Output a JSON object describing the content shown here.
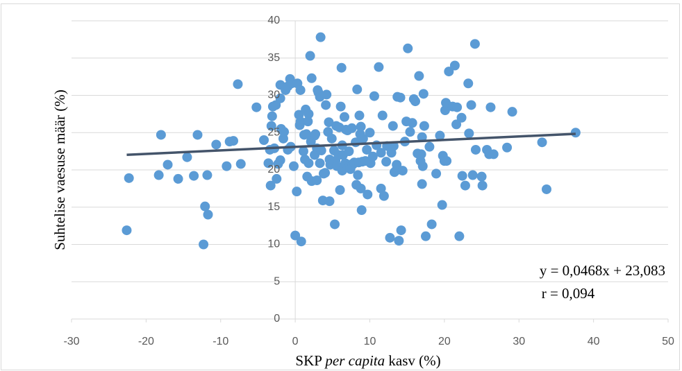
{
  "chart_data": {
    "type": "scatter",
    "x_label": [
      "SKP ",
      "per capita",
      " kasv (%)"
    ],
    "y_label": "Suhtelise vaesuse määr (%)",
    "annotations": [
      "y = 0,0468x + 23,083",
      "r = 0,094"
    ],
    "trendline": {
      "slope": 0.0468,
      "intercept": 23.083,
      "color": "#44546a"
    },
    "color": "#5b9bd5",
    "xlim": [
      -30,
      50
    ],
    "xticks": [
      -30,
      -20,
      -10,
      0,
      10,
      20,
      30,
      40,
      50
    ],
    "ylim": [
      0,
      40
    ],
    "yticks": [
      0,
      5,
      10,
      15,
      20,
      25,
      30,
      35,
      40
    ],
    "grid": true,
    "x": [
      -22.6,
      -22.3,
      -18.0,
      -17.1,
      -18.3,
      -15.7,
      -14.5,
      -13.1,
      -11.8,
      -12.1,
      -11.7,
      -12.3,
      -13.6,
      -10.6,
      -9.2,
      -8.8,
      -8.3,
      -7.7,
      -7.3,
      -5.2,
      -4.2,
      -3.6,
      -3.4,
      -3.3,
      -3.2,
      -3.1,
      -2.8,
      -3.0,
      -2.6,
      -2.5,
      -2.3,
      -2.0,
      -2.0,
      -2.0,
      -1.9,
      -1.6,
      -1.5,
      -1.3,
      -1.0,
      -1.0,
      -0.7,
      -0.5,
      -0.6,
      -0.2,
      0.0,
      0.2,
      0.3,
      0.5,
      0.6,
      0.7,
      0.7,
      0.8,
      1.1,
      1.2,
      1.3,
      1.4,
      1.6,
      1.7,
      1.5,
      1.8,
      1.8,
      2.0,
      2.1,
      2.2,
      2.2,
      2.6,
      2.6,
      2.7,
      2.9,
      2.9,
      3.0,
      3.1,
      3.3,
      3.4,
      3.3,
      3.5,
      3.7,
      3.8,
      4.0,
      4.1,
      4.2,
      4.4,
      4.5,
      4.6,
      4.6,
      4.7,
      4.9,
      5.2,
      5.3,
      5.4,
      5.5,
      5.6,
      5.8,
      5.9,
      6.0,
      6.1,
      6.2,
      6.3,
      6.3,
      6.4,
      6.6,
      6.7,
      6.8,
      7.0,
      7.2,
      7.3,
      7.4,
      7.6,
      7.7,
      7.9,
      8.1,
      8.2,
      8.3,
      8.4,
      8.5,
      8.6,
      8.7,
      8.8,
      8.8,
      8.9,
      9.0,
      9.1,
      9.4,
      9.6,
      9.7,
      10.0,
      10.1,
      10.4,
      10.6,
      10.9,
      11.2,
      11.5,
      11.5,
      11.7,
      11.9,
      12.2,
      12.3,
      12.7,
      12.9,
      13.1,
      13.2,
      13.3,
      13.5,
      13.6,
      13.7,
      13.9,
      14.1,
      14.2,
      14.4,
      14.7,
      14.9,
      15.1,
      15.4,
      15.7,
      15.9,
      16.1,
      16.4,
      16.6,
      16.8,
      16.9,
      17.0,
      17.0,
      17.1,
      17.2,
      17.3,
      17.5,
      18.0,
      18.3,
      18.9,
      19.4,
      19.7,
      19.8,
      20.0,
      20.1,
      20.2,
      20.3,
      20.6,
      21.1,
      21.4,
      21.6,
      21.7,
      22.0,
      22.3,
      22.4,
      22.8,
      23.2,
      23.3,
      23.6,
      23.8,
      24.1,
      24.2,
      25.0,
      25.1,
      25.7,
      26.0,
      26.2,
      26.6,
      28.4,
      29.1,
      33.1,
      33.7,
      37.6
    ],
    "values": [
      11.9,
      18.9,
      24.7,
      20.7,
      19.3,
      18.8,
      21.7,
      24.7,
      19.3,
      15.1,
      14.0,
      10.0,
      19.2,
      23.4,
      20.5,
      23.8,
      23.9,
      31.5,
      20.8,
      28.4,
      24.0,
      20.9,
      22.7,
      17.9,
      25.9,
      27.2,
      22.9,
      28.5,
      28.7,
      18.8,
      20.8,
      21.3,
      31.4,
      29.6,
      25.5,
      24.2,
      25.1,
      30.7,
      31.2,
      22.7,
      32.2,
      31.6,
      23.1,
      20.5,
      11.2,
      17.1,
      31.6,
      27.4,
      26.0,
      26.5,
      30.7,
      10.4,
      22.5,
      24.7,
      21.4,
      28.1,
      19.1,
      26.5,
      24.8,
      27.5,
      20.9,
      35.3,
      23.8,
      32.3,
      18.5,
      24.6,
      22.0,
      24.8,
      22.9,
      18.6,
      30.7,
      30.4,
      29.8,
      37.8,
      20.9,
      22.6,
      15.9,
      19.5,
      19.6,
      28.7,
      30.1,
      25.1,
      26.4,
      21.4,
      15.8,
      20.7,
      24.2,
      22.6,
      12.7,
      21.2,
      25.9,
      20.5,
      22.0,
      25.7,
      17.3,
      28.5,
      33.7,
      23.3,
      19.9,
      22.0,
      27.1,
      20.9,
      25.4,
      25.3,
      22.5,
      20.7,
      20.1,
      25.6,
      20.7,
      21.0,
      23.7,
      18.0,
      30.8,
      19.3,
      21.0,
      27.3,
      24.8,
      17.5,
      25.8,
      14.6,
      21.1,
      24.2,
      21.2,
      22.7,
      16.7,
      25.0,
      20.9,
      21.8,
      29.9,
      23.3,
      33.8,
      17.5,
      22.3,
      27.3,
      16.5,
      21.1,
      23.2,
      10.9,
      22.3,
      25.9,
      23.2,
      19.7,
      19.9,
      20.7,
      29.8,
      10.5,
      29.7,
      11.9,
      19.9,
      23.8,
      26.5,
      36.3,
      25.1,
      26.3,
      29.5,
      29.2,
      22.2,
      32.6,
      21.2,
      22.1,
      18.1,
      24.4,
      20.5,
      30.2,
      25.9,
      11.1,
      23.1,
      12.7,
      19.5,
      24.6,
      15.3,
      21.9,
      21.2,
      28.0,
      29.0,
      21.2,
      33.2,
      28.5,
      34.0,
      26.1,
      28.4,
      11.1,
      27.0,
      19.2,
      17.9,
      31.6,
      24.9,
      28.7,
      19.3,
      36.9,
      22.7,
      19.1,
      17.9,
      22.7,
      22.1,
      28.4,
      22.1,
      23.0,
      27.8,
      23.7,
      17.4,
      25.0
    ]
  }
}
